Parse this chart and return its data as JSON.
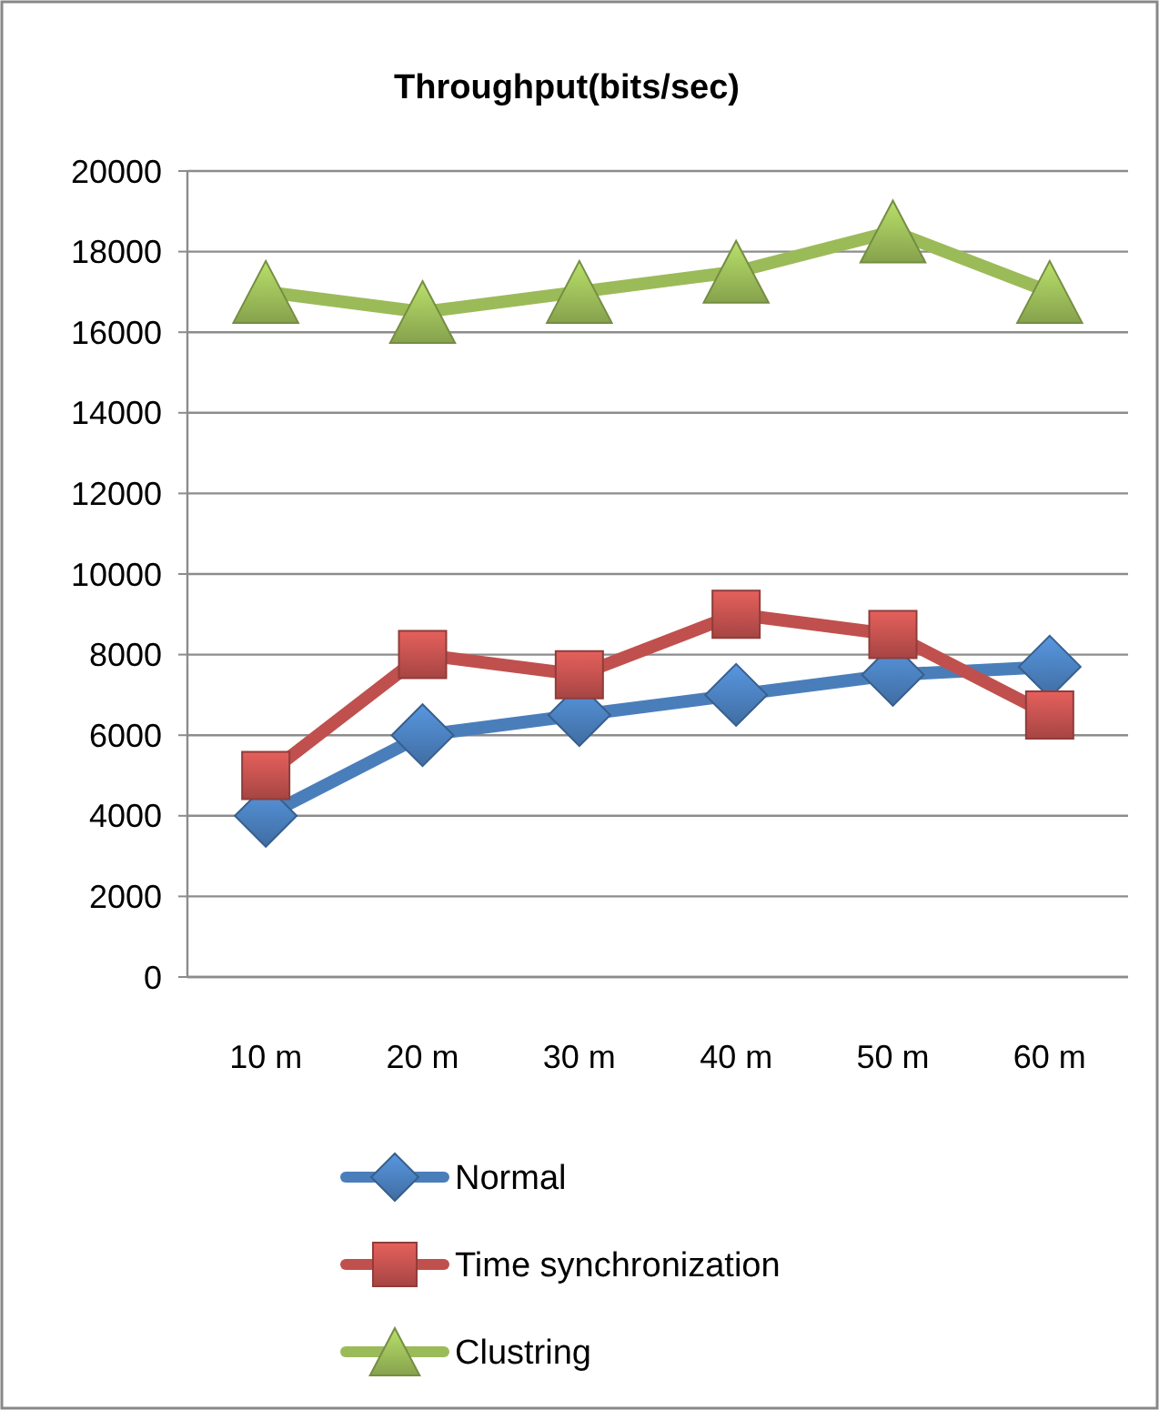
{
  "chart_data": {
    "type": "line",
    "title": "Throughput(bits/sec)",
    "categories": [
      "10 m",
      "20 m",
      "30 m",
      "40 m",
      "50 m",
      "60 m"
    ],
    "series": [
      {
        "name": "Normal",
        "color": "#4a7ebb",
        "marker": "diamond",
        "values": [
          4000,
          6000,
          6500,
          7000,
          7500,
          7700
        ]
      },
      {
        "name": "Time synchronization",
        "color": "#c0504d",
        "marker": "square",
        "values": [
          5000,
          8000,
          7500,
          9000,
          8500,
          6500
        ]
      },
      {
        "name": "Clustring",
        "color": "#9bbb59",
        "marker": "triangle",
        "values": [
          17000,
          16500,
          17000,
          17500,
          18500,
          17000
        ]
      }
    ],
    "ylim": [
      0,
      20000
    ],
    "yticks": [
      0,
      2000,
      4000,
      6000,
      8000,
      10000,
      12000,
      14000,
      16000,
      18000,
      20000
    ],
    "grid": "y",
    "legend": "bottom"
  }
}
